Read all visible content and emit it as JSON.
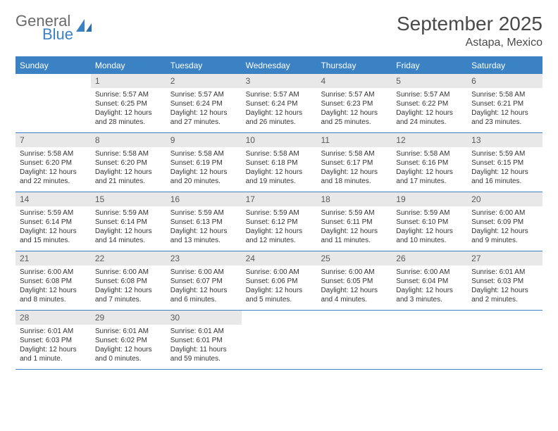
{
  "brand": {
    "word1": "General",
    "word2": "Blue"
  },
  "title": "September 2025",
  "location": "Astapa, Mexico",
  "colors": {
    "accent": "#3b82c4",
    "dayhead_bg": "#3b82c4",
    "dayhead_fg": "#ffffff",
    "daynum_bg": "#e8e8e8",
    "text": "#333333",
    "title_color": "#4a4a4a",
    "logo_gray": "#6a6a6a"
  },
  "day_names": [
    "Sunday",
    "Monday",
    "Tuesday",
    "Wednesday",
    "Thursday",
    "Friday",
    "Saturday"
  ],
  "weeks": [
    [
      null,
      {
        "n": "1",
        "sr": "Sunrise: 5:57 AM",
        "ss": "Sunset: 6:25 PM",
        "d1": "Daylight: 12 hours",
        "d2": "and 28 minutes."
      },
      {
        "n": "2",
        "sr": "Sunrise: 5:57 AM",
        "ss": "Sunset: 6:24 PM",
        "d1": "Daylight: 12 hours",
        "d2": "and 27 minutes."
      },
      {
        "n": "3",
        "sr": "Sunrise: 5:57 AM",
        "ss": "Sunset: 6:24 PM",
        "d1": "Daylight: 12 hours",
        "d2": "and 26 minutes."
      },
      {
        "n": "4",
        "sr": "Sunrise: 5:57 AM",
        "ss": "Sunset: 6:23 PM",
        "d1": "Daylight: 12 hours",
        "d2": "and 25 minutes."
      },
      {
        "n": "5",
        "sr": "Sunrise: 5:57 AM",
        "ss": "Sunset: 6:22 PM",
        "d1": "Daylight: 12 hours",
        "d2": "and 24 minutes."
      },
      {
        "n": "6",
        "sr": "Sunrise: 5:58 AM",
        "ss": "Sunset: 6:21 PM",
        "d1": "Daylight: 12 hours",
        "d2": "and 23 minutes."
      }
    ],
    [
      {
        "n": "7",
        "sr": "Sunrise: 5:58 AM",
        "ss": "Sunset: 6:20 PM",
        "d1": "Daylight: 12 hours",
        "d2": "and 22 minutes."
      },
      {
        "n": "8",
        "sr": "Sunrise: 5:58 AM",
        "ss": "Sunset: 6:20 PM",
        "d1": "Daylight: 12 hours",
        "d2": "and 21 minutes."
      },
      {
        "n": "9",
        "sr": "Sunrise: 5:58 AM",
        "ss": "Sunset: 6:19 PM",
        "d1": "Daylight: 12 hours",
        "d2": "and 20 minutes."
      },
      {
        "n": "10",
        "sr": "Sunrise: 5:58 AM",
        "ss": "Sunset: 6:18 PM",
        "d1": "Daylight: 12 hours",
        "d2": "and 19 minutes."
      },
      {
        "n": "11",
        "sr": "Sunrise: 5:58 AM",
        "ss": "Sunset: 6:17 PM",
        "d1": "Daylight: 12 hours",
        "d2": "and 18 minutes."
      },
      {
        "n": "12",
        "sr": "Sunrise: 5:58 AM",
        "ss": "Sunset: 6:16 PM",
        "d1": "Daylight: 12 hours",
        "d2": "and 17 minutes."
      },
      {
        "n": "13",
        "sr": "Sunrise: 5:59 AM",
        "ss": "Sunset: 6:15 PM",
        "d1": "Daylight: 12 hours",
        "d2": "and 16 minutes."
      }
    ],
    [
      {
        "n": "14",
        "sr": "Sunrise: 5:59 AM",
        "ss": "Sunset: 6:14 PM",
        "d1": "Daylight: 12 hours",
        "d2": "and 15 minutes."
      },
      {
        "n": "15",
        "sr": "Sunrise: 5:59 AM",
        "ss": "Sunset: 6:14 PM",
        "d1": "Daylight: 12 hours",
        "d2": "and 14 minutes."
      },
      {
        "n": "16",
        "sr": "Sunrise: 5:59 AM",
        "ss": "Sunset: 6:13 PM",
        "d1": "Daylight: 12 hours",
        "d2": "and 13 minutes."
      },
      {
        "n": "17",
        "sr": "Sunrise: 5:59 AM",
        "ss": "Sunset: 6:12 PM",
        "d1": "Daylight: 12 hours",
        "d2": "and 12 minutes."
      },
      {
        "n": "18",
        "sr": "Sunrise: 5:59 AM",
        "ss": "Sunset: 6:11 PM",
        "d1": "Daylight: 12 hours",
        "d2": "and 11 minutes."
      },
      {
        "n": "19",
        "sr": "Sunrise: 5:59 AM",
        "ss": "Sunset: 6:10 PM",
        "d1": "Daylight: 12 hours",
        "d2": "and 10 minutes."
      },
      {
        "n": "20",
        "sr": "Sunrise: 6:00 AM",
        "ss": "Sunset: 6:09 PM",
        "d1": "Daylight: 12 hours",
        "d2": "and 9 minutes."
      }
    ],
    [
      {
        "n": "21",
        "sr": "Sunrise: 6:00 AM",
        "ss": "Sunset: 6:08 PM",
        "d1": "Daylight: 12 hours",
        "d2": "and 8 minutes."
      },
      {
        "n": "22",
        "sr": "Sunrise: 6:00 AM",
        "ss": "Sunset: 6:08 PM",
        "d1": "Daylight: 12 hours",
        "d2": "and 7 minutes."
      },
      {
        "n": "23",
        "sr": "Sunrise: 6:00 AM",
        "ss": "Sunset: 6:07 PM",
        "d1": "Daylight: 12 hours",
        "d2": "and 6 minutes."
      },
      {
        "n": "24",
        "sr": "Sunrise: 6:00 AM",
        "ss": "Sunset: 6:06 PM",
        "d1": "Daylight: 12 hours",
        "d2": "and 5 minutes."
      },
      {
        "n": "25",
        "sr": "Sunrise: 6:00 AM",
        "ss": "Sunset: 6:05 PM",
        "d1": "Daylight: 12 hours",
        "d2": "and 4 minutes."
      },
      {
        "n": "26",
        "sr": "Sunrise: 6:00 AM",
        "ss": "Sunset: 6:04 PM",
        "d1": "Daylight: 12 hours",
        "d2": "and 3 minutes."
      },
      {
        "n": "27",
        "sr": "Sunrise: 6:01 AM",
        "ss": "Sunset: 6:03 PM",
        "d1": "Daylight: 12 hours",
        "d2": "and 2 minutes."
      }
    ],
    [
      {
        "n": "28",
        "sr": "Sunrise: 6:01 AM",
        "ss": "Sunset: 6:03 PM",
        "d1": "Daylight: 12 hours",
        "d2": "and 1 minute."
      },
      {
        "n": "29",
        "sr": "Sunrise: 6:01 AM",
        "ss": "Sunset: 6:02 PM",
        "d1": "Daylight: 12 hours",
        "d2": "and 0 minutes."
      },
      {
        "n": "30",
        "sr": "Sunrise: 6:01 AM",
        "ss": "Sunset: 6:01 PM",
        "d1": "Daylight: 11 hours",
        "d2": "and 59 minutes."
      },
      null,
      null,
      null,
      null
    ]
  ]
}
